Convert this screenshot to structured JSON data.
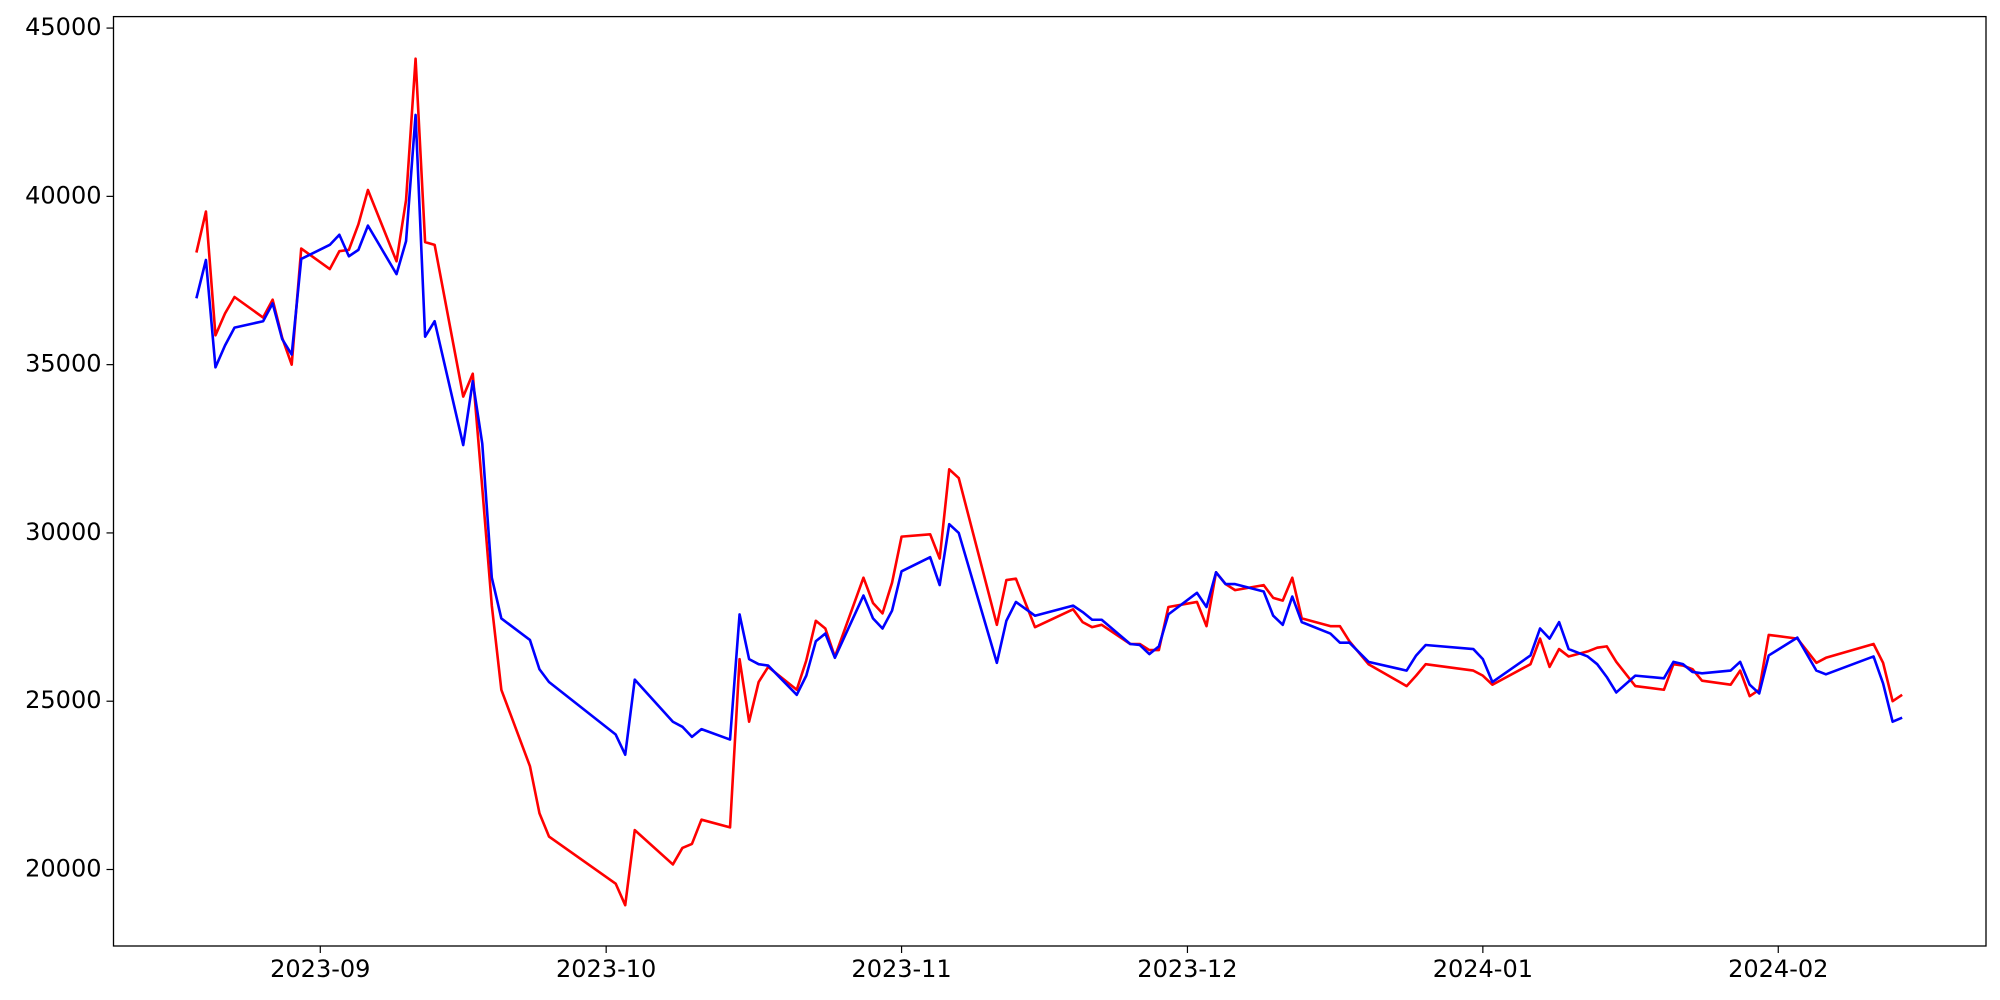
{
  "chart_data": {
    "type": "line",
    "x": [
      19588,
      19589,
      19590,
      19591,
      19592,
      19595,
      19596,
      19597,
      19598,
      19599,
      19602,
      19603,
      19604,
      19605,
      19606,
      19609,
      19610,
      19611,
      19612,
      19613,
      19616,
      19617,
      19618,
      19619,
      19620,
      19623,
      19624,
      19625,
      19632,
      19633,
      19634,
      19638,
      19639,
      19640,
      19641,
      19644,
      19645,
      19646,
      19647,
      19648,
      19651,
      19652,
      19653,
      19654,
      19655,
      19658,
      19659,
      19660,
      19661,
      19662,
      19665,
      19666,
      19667,
      19668,
      19672,
      19673,
      19674,
      19676,
      19680,
      19681,
      19682,
      19683,
      19686,
      19687,
      19688,
      19689,
      19690,
      19693,
      19694,
      19695,
      19696,
      19697,
      19700,
      19701,
      19702,
      19703,
      19704,
      19707,
      19708,
      19709,
      19711,
      19715,
      19716,
      19717,
      19722,
      19723,
      19724,
      19728,
      19729,
      19730,
      19731,
      19732,
      19734,
      19735,
      19736,
      19737,
      19739,
      19742,
      19743,
      19744,
      19745,
      19746,
      19749,
      19750,
      19751,
      19752,
      19753,
      19756,
      19758,
      19759,
      19764,
      19765,
      19766,
      19767
    ],
    "series": [
      {
        "color": "#ff0000",
        "values": [
          38330,
          39550,
          35870,
          36520,
          37010,
          36400,
          36930,
          35800,
          35000,
          38450,
          37840,
          38370,
          38410,
          39170,
          40190,
          38070,
          39890,
          44090,
          38640,
          38560,
          34050,
          34730,
          31330,
          27840,
          25340,
          23070,
          21670,
          20980,
          19580,
          18940,
          21170,
          20150,
          20640,
          20760,
          21480,
          21250,
          26250,
          24390,
          25570,
          26020,
          25340,
          26210,
          27390,
          27160,
          26320,
          28670,
          27920,
          27610,
          28520,
          29890,
          29960,
          29240,
          31890,
          31630,
          27270,
          28600,
          28640,
          27200,
          27730,
          27350,
          27200,
          27270,
          26700,
          26700,
          26520,
          26520,
          27800,
          27950,
          27230,
          28830,
          28480,
          28300,
          28450,
          28070,
          27990,
          28670,
          27460,
          27230,
          27230,
          26780,
          26100,
          25450,
          25760,
          26100,
          25910,
          25760,
          25490,
          26100,
          26860,
          26020,
          26550,
          26330,
          26480,
          26590,
          26630,
          26170,
          25450,
          25340,
          26100,
          26060,
          25950,
          25610,
          25490,
          25910,
          25150,
          25340,
          26970,
          26860,
          26140,
          26290,
          26700,
          26140,
          25000,
          25190
        ]
      },
      {
        "color": "#0000ff",
        "values": [
          36970,
          38110,
          34920,
          35570,
          36100,
          36290,
          36820,
          35760,
          35300,
          38140,
          38560,
          38860,
          38220,
          38410,
          39130,
          37690,
          38670,
          42420,
          35830,
          36290,
          32610,
          34510,
          32650,
          28670,
          27460,
          26820,
          25950,
          25570,
          24010,
          23410,
          25640,
          24390,
          24240,
          23940,
          24170,
          23860,
          27580,
          26250,
          26100,
          26060,
          25190,
          25760,
          26780,
          27010,
          26290,
          28140,
          27460,
          27160,
          27690,
          28860,
          29280,
          28450,
          30260,
          30000,
          26140,
          27390,
          27950,
          27540,
          27840,
          27650,
          27420,
          27420,
          26700,
          26670,
          26400,
          26630,
          27580,
          28220,
          27800,
          28830,
          28480,
          28480,
          28260,
          27540,
          27270,
          28110,
          27350,
          27010,
          26740,
          26740,
          26170,
          25910,
          26360,
          26670,
          26550,
          26250,
          25570,
          26360,
          27160,
          26860,
          27350,
          26550,
          26330,
          26100,
          25720,
          25260,
          25760,
          25680,
          26170,
          26100,
          25870,
          25830,
          25910,
          26170,
          25490,
          25230,
          26360,
          26890,
          25910,
          25800,
          26330,
          25530,
          24390,
          24510
        ]
      }
    ],
    "xlim": [
      19579.3,
      19775.8
    ],
    "xticks": [
      {
        "value": 19601,
        "label": "2023-09"
      },
      {
        "value": 19631,
        "label": "2023-10"
      },
      {
        "value": 19662,
        "label": "2023-11"
      },
      {
        "value": 19692,
        "label": "2023-12"
      },
      {
        "value": 19723,
        "label": "2024-01"
      },
      {
        "value": 19754,
        "label": "2024-02"
      }
    ],
    "ylim": [
      17727,
      45341
    ],
    "yticks": [
      20000,
      25000,
      30000,
      35000,
      40000,
      45000
    ],
    "grid": false
  }
}
